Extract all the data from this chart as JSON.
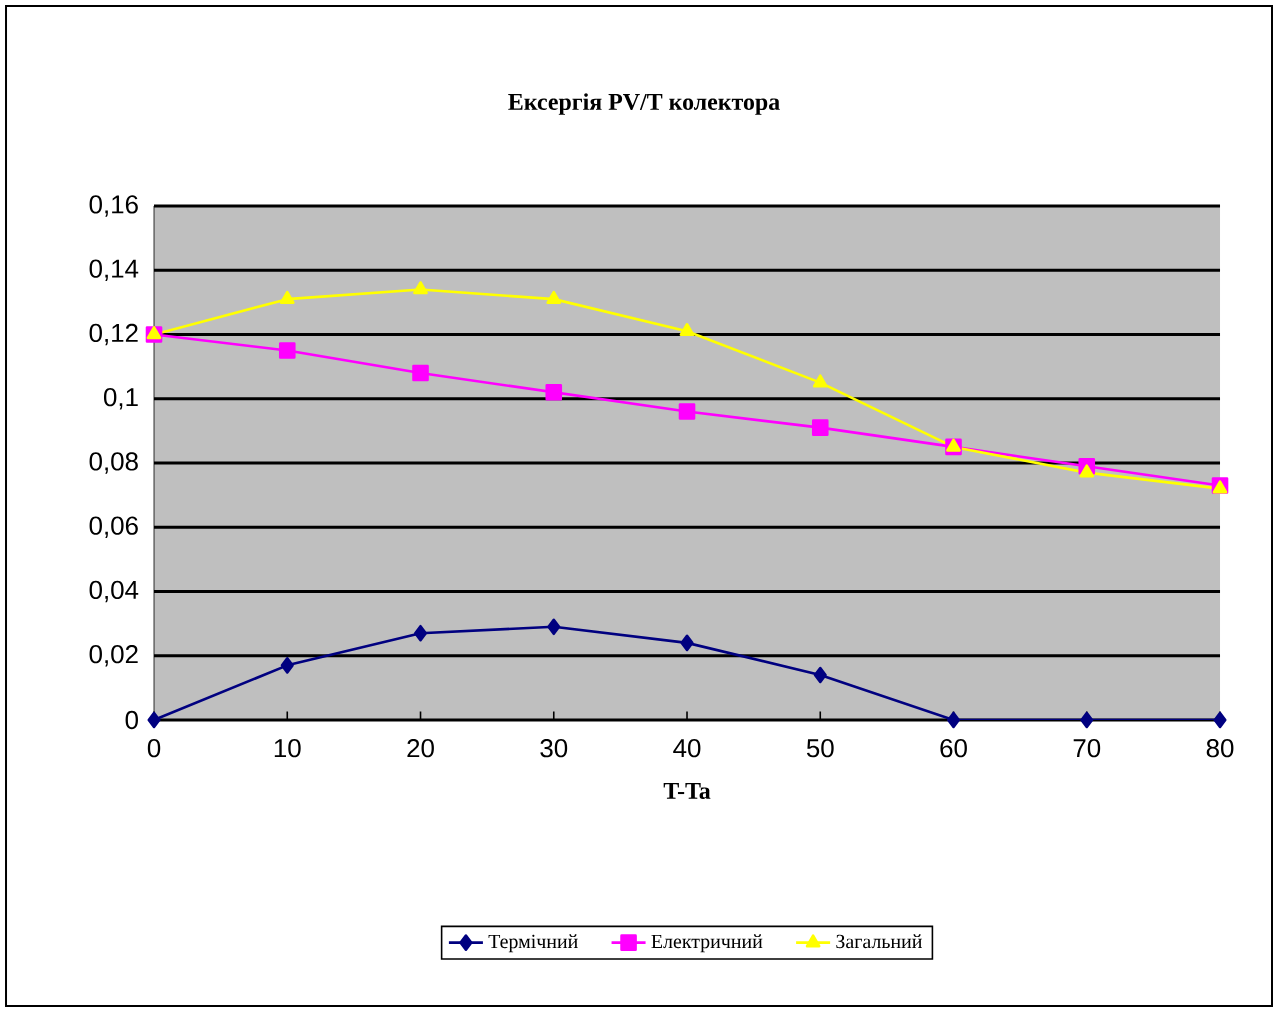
{
  "chart_data": {
    "type": "line",
    "title": "Ексергія PV/T колектора",
    "xlabel": "T-Ta",
    "categories": [
      "0",
      "10",
      "20",
      "30",
      "40",
      "50",
      "60",
      "70",
      "80"
    ],
    "series": [
      {
        "name": "Термічний",
        "color": "#000080",
        "marker": "diamond",
        "values": [
          0,
          0.017,
          0.027,
          0.029,
          0.024,
          0.014,
          0,
          0,
          0
        ]
      },
      {
        "name": "Електричний",
        "color": "#ff00ff",
        "marker": "square",
        "values": [
          0.12,
          0.115,
          0.108,
          0.102,
          0.096,
          0.091,
          0.085,
          0.079,
          0.073
        ]
      },
      {
        "name": "Загальний",
        "color": "#ffff00",
        "marker": "triangle",
        "values": [
          0.12,
          0.131,
          0.134,
          0.131,
          0.121,
          0.105,
          0.085,
          0.077,
          0.072
        ]
      }
    ],
    "ylim": [
      0,
      0.16
    ],
    "yticks": [
      {
        "value": 0,
        "label": "0"
      },
      {
        "value": 0.02,
        "label": "0,02"
      },
      {
        "value": 0.04,
        "label": "0,04"
      },
      {
        "value": 0.06,
        "label": "0,06"
      },
      {
        "value": 0.08,
        "label": "0,08"
      },
      {
        "value": 0.1,
        "label": "0,1"
      },
      {
        "value": 0.12,
        "label": "0,12"
      },
      {
        "value": 0.14,
        "label": "0,14"
      },
      {
        "value": 0.16,
        "label": "0,16"
      }
    ],
    "grid": "y",
    "legend": "bottom",
    "line_style": "solid"
  }
}
